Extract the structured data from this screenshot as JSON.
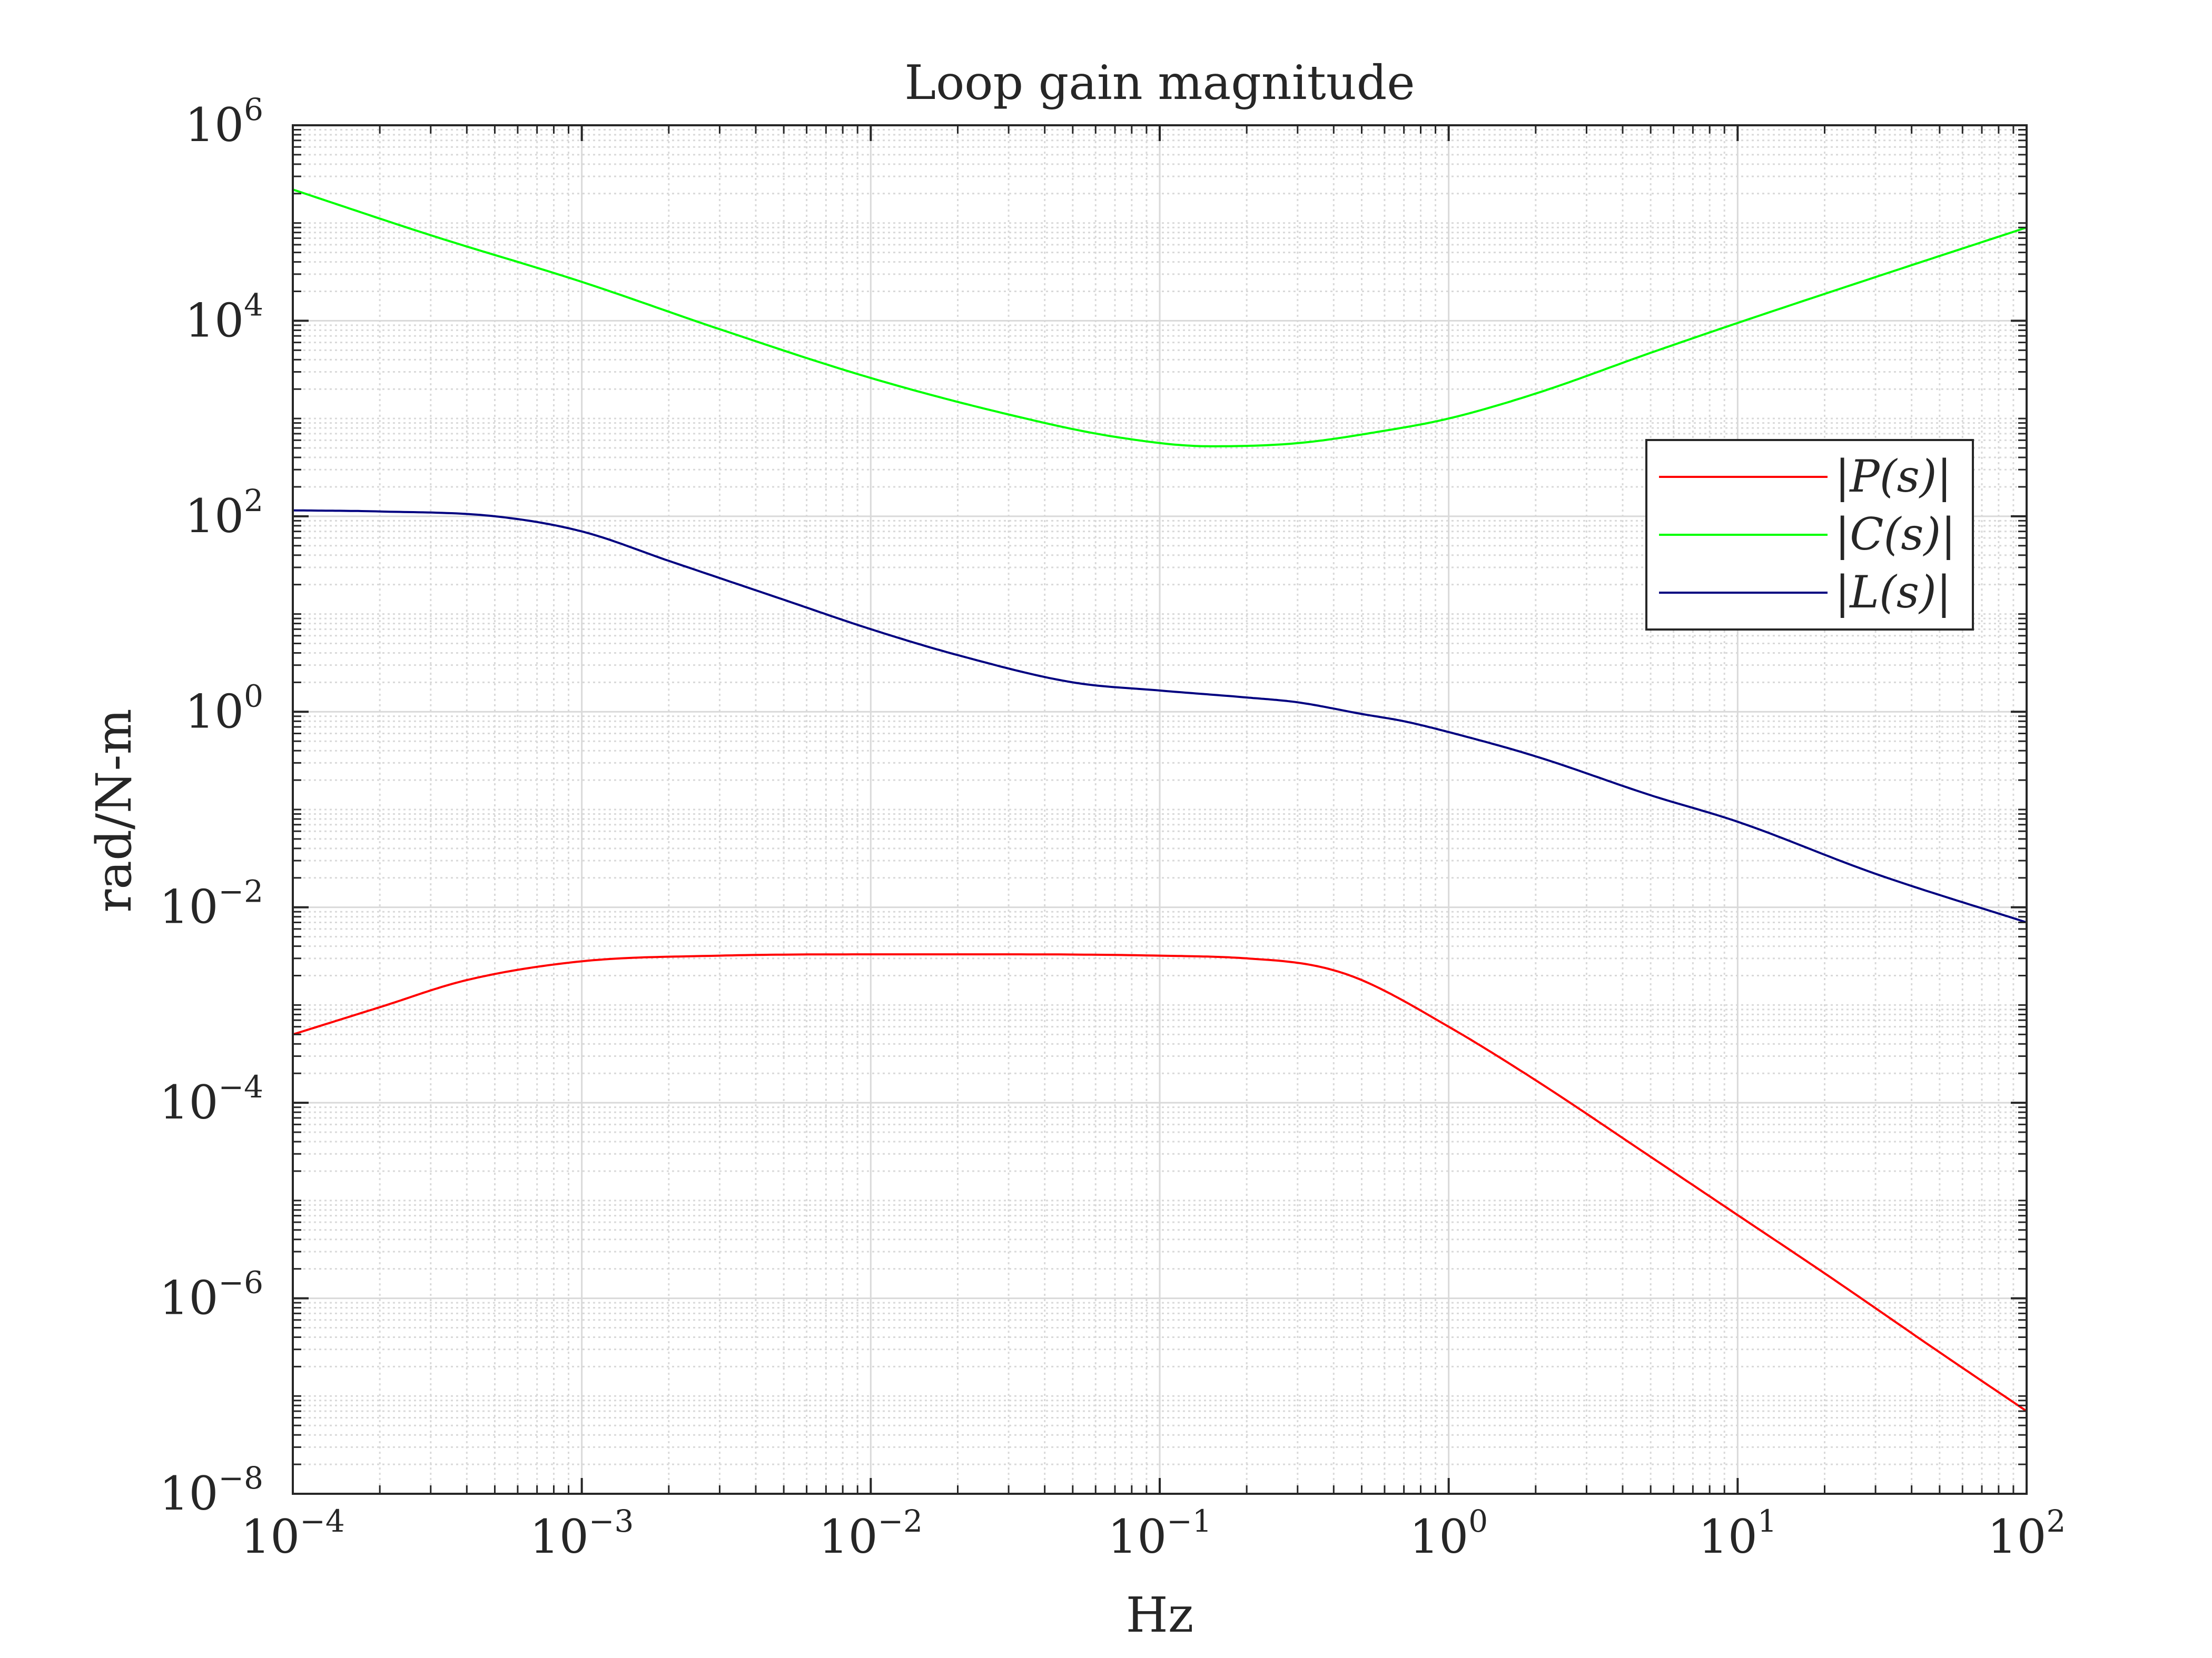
{
  "chart_data": {
    "type": "line",
    "title": "Loop gain magnitude",
    "xlabel": "Hz",
    "ylabel": "rad/N-m",
    "xscale": "log",
    "yscale": "log",
    "xlim": [
      0.0001,
      100
    ],
    "ylim": [
      1e-08,
      1000000
    ],
    "grid": true,
    "minor_grid": true,
    "legend_position": "top-right",
    "x_ticks": [
      {
        "base": "10",
        "exp": "−4",
        "value": 0.0001
      },
      {
        "base": "10",
        "exp": "−3",
        "value": 0.001
      },
      {
        "base": "10",
        "exp": "−2",
        "value": 0.01
      },
      {
        "base": "10",
        "exp": "−1",
        "value": 0.1
      },
      {
        "base": "10",
        "exp": "0",
        "value": 1
      },
      {
        "base": "10",
        "exp": "1",
        "value": 10
      },
      {
        "base": "10",
        "exp": "2",
        "value": 100
      }
    ],
    "y_ticks": [
      {
        "base": "10",
        "exp": "−8",
        "value": 1e-08
      },
      {
        "base": "10",
        "exp": "−6",
        "value": 1e-06
      },
      {
        "base": "10",
        "exp": "−4",
        "value": 0.0001
      },
      {
        "base": "10",
        "exp": "−2",
        "value": 0.01
      },
      {
        "base": "10",
        "exp": "0",
        "value": 1
      },
      {
        "base": "10",
        "exp": "2",
        "value": 100
      },
      {
        "base": "10",
        "exp": "4",
        "value": 10000
      },
      {
        "base": "10",
        "exp": "6",
        "value": 1000000
      }
    ],
    "series": [
      {
        "name": "|P(s)|",
        "color": "#ff0000",
        "x": [
          0.0001,
          0.0002,
          0.0004,
          0.001,
          0.003,
          0.01,
          0.03,
          0.1,
          0.2,
          0.35,
          0.5,
          1,
          2,
          5,
          10,
          20,
          50,
          100
        ],
        "y": [
          0.0005,
          0.00095,
          0.0018,
          0.0028,
          0.0032,
          0.0033,
          0.0033,
          0.0032,
          0.003,
          0.0025,
          0.0018,
          0.0006,
          0.00017,
          2.8e-05,
          7.1e-06,
          1.8e-06,
          2.8e-07,
          7e-08
        ]
      },
      {
        "name": "|C(s)|",
        "color": "#00ff00",
        "x": [
          0.0001,
          0.0003,
          0.001,
          0.003,
          0.01,
          0.03,
          0.07,
          0.15,
          0.3,
          0.6,
          1,
          2,
          5,
          10,
          30,
          100
        ],
        "y": [
          220000,
          75000,
          25000,
          8200,
          2600,
          1100,
          650,
          520,
          560,
          750,
          1000,
          1800,
          4700,
          9500,
          28000,
          90000
        ]
      },
      {
        "name": "|L(s)|",
        "color": "#000080",
        "x": [
          0.0001,
          0.0002,
          0.0005,
          0.001,
          0.002,
          0.005,
          0.01,
          0.02,
          0.05,
          0.1,
          0.2,
          0.3,
          0.5,
          0.7,
          1,
          2,
          5,
          10,
          30,
          100
        ],
        "y": [
          115,
          112,
          100,
          70,
          35,
          14,
          7,
          3.8,
          2,
          1.65,
          1.4,
          1.25,
          0.95,
          0.8,
          0.62,
          0.35,
          0.14,
          0.075,
          0.022,
          0.007
        ]
      }
    ]
  }
}
